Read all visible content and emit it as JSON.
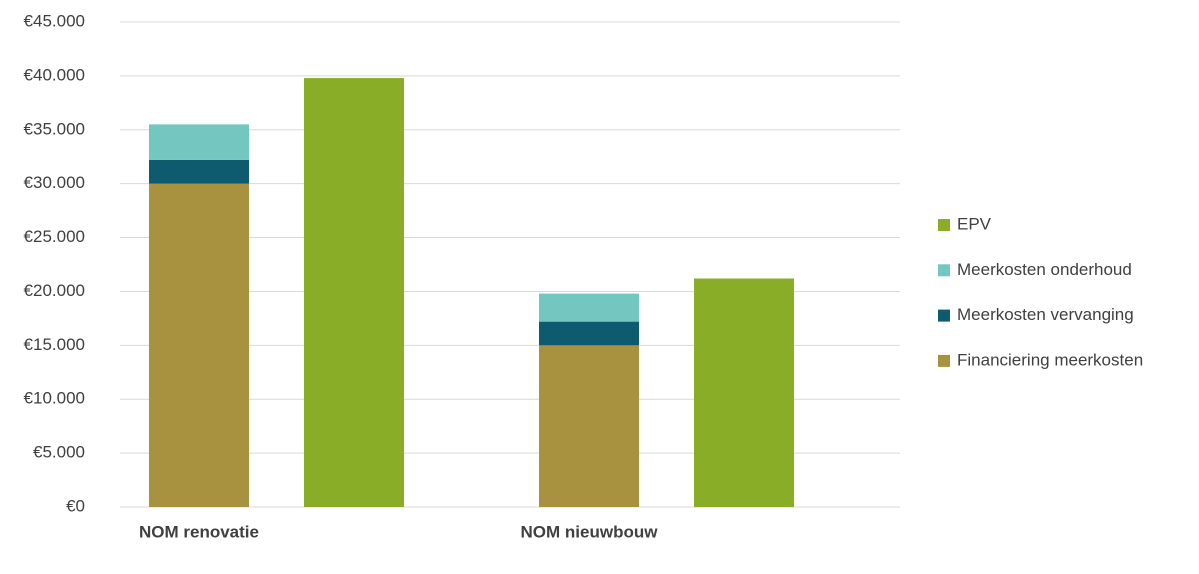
{
  "chart_data": {
    "type": "stacked-bar",
    "categories": [
      "NOM renovatie",
      "NOM nieuwbouw"
    ],
    "series": [
      {
        "name": "Financiering meerkosten",
        "color": "#a89240",
        "stack": "a",
        "values": [
          30000,
          15000
        ]
      },
      {
        "name": "Meerkosten vervanging",
        "color": "#0e5a6e",
        "stack": "a",
        "values": [
          2200,
          2200
        ]
      },
      {
        "name": "Meerkosten onderhoud",
        "color": "#74c6c0",
        "stack": "a",
        "values": [
          3300,
          2600
        ]
      },
      {
        "name": "EPV",
        "color": "#8aad27",
        "stack": "b",
        "values": [
          39800,
          21200
        ]
      }
    ],
    "ylim": [
      0,
      45000
    ],
    "yticks": [
      {
        "value": 0,
        "label": "€0"
      },
      {
        "value": 5000,
        "label": "€5.000"
      },
      {
        "value": 10000,
        "label": "€10.000"
      },
      {
        "value": 15000,
        "label": "€15.000"
      },
      {
        "value": 20000,
        "label": "€20.000"
      },
      {
        "value": 25000,
        "label": "€25.000"
      },
      {
        "value": 30000,
        "label": "€30.000"
      },
      {
        "value": 35000,
        "label": "€35.000"
      },
      {
        "value": 40000,
        "label": "€40.000"
      },
      {
        "value": 45000,
        "label": "€45.000"
      }
    ],
    "grid": true,
    "legend": "right"
  }
}
